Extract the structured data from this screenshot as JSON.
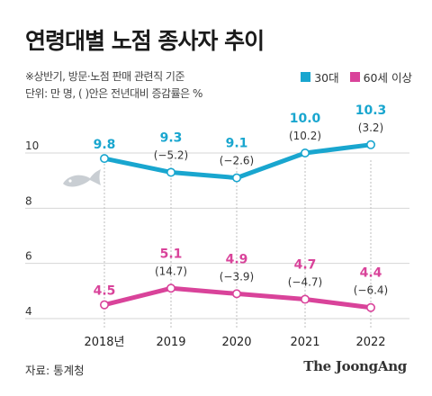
{
  "title": "연령대별 노점 종사자 추이",
  "notes": [
    "※상반기, 방문·노점 판매 관련직 기준",
    "단위: 만 명, ( )안은 전년대비 증감률은 %"
  ],
  "source": "자료: 통계청",
  "brand": "The JoongAng",
  "colors": {
    "s30": "#19a6cf",
    "s60": "#d9439a"
  },
  "chart_data": {
    "type": "line",
    "categories": [
      "2018년",
      "2019",
      "2020",
      "2021",
      "2022"
    ],
    "ylim": [
      4,
      10.4
    ],
    "yticks": [
      4,
      6,
      8,
      10
    ],
    "legend_position": "top-right",
    "series": [
      {
        "name": "30대",
        "values": [
          9.8,
          9.3,
          9.1,
          10.0,
          10.3
        ],
        "value_labels": [
          "9.8",
          "9.3",
          "9.1",
          "10.0",
          "10.3"
        ],
        "change_labels": [
          "",
          "(−5.2)",
          "(−2.6)",
          "(10.2)",
          "(3.2)"
        ]
      },
      {
        "name": "60세 이상",
        "values": [
          4.5,
          5.1,
          4.9,
          4.7,
          4.4
        ],
        "value_labels": [
          "4.5",
          "5.1",
          "4.9",
          "4.7",
          "4.4"
        ],
        "change_labels": [
          "",
          "(14.7)",
          "(−3.9)",
          "(−4.7)",
          "(−6.4)"
        ]
      }
    ]
  }
}
